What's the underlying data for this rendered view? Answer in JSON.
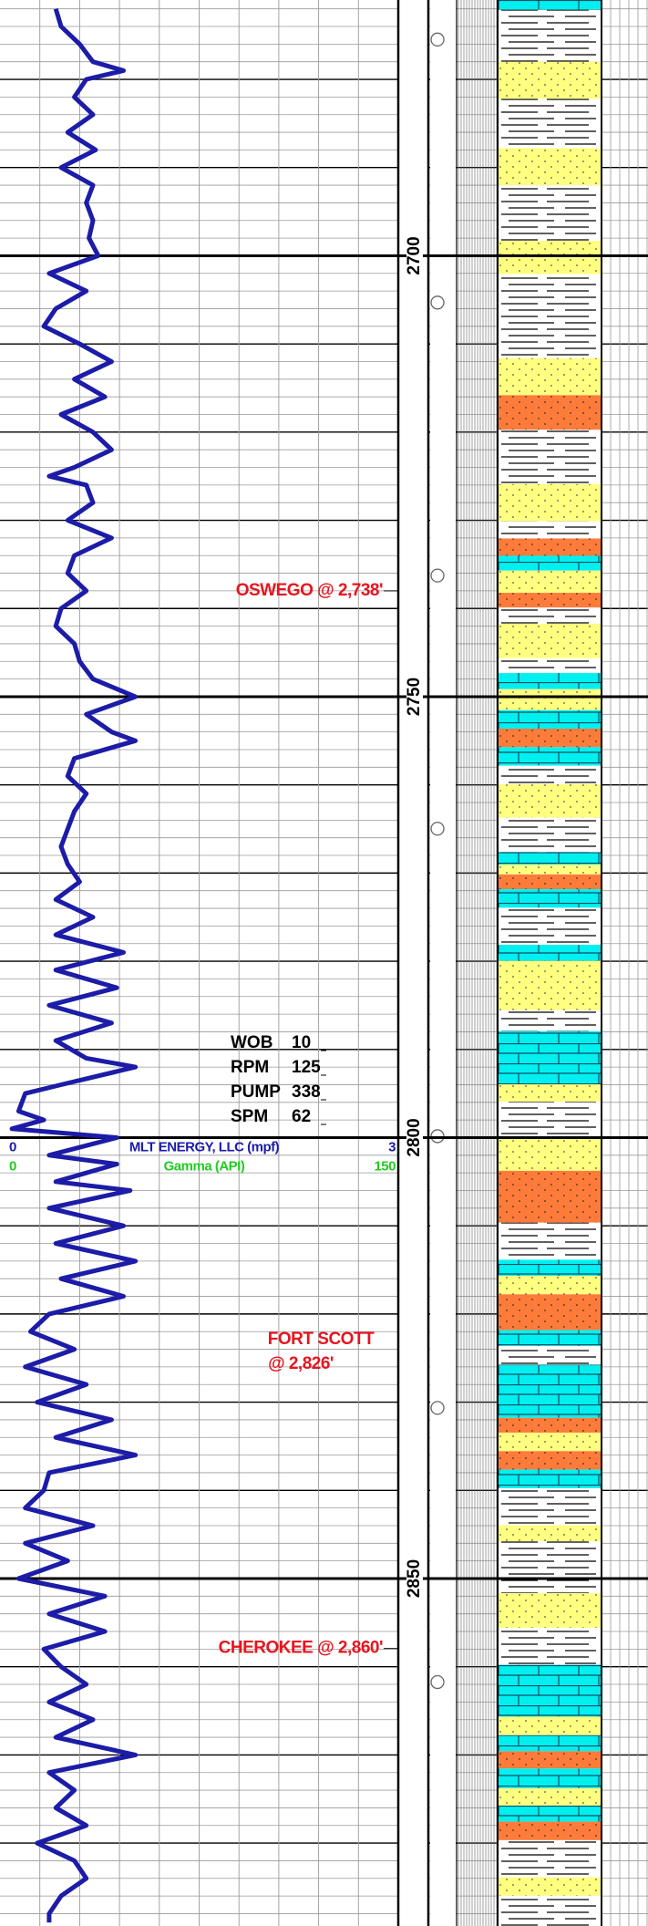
{
  "chart_data": {
    "type": "line",
    "x": [
      2672,
      2674,
      2676,
      2678,
      2679,
      2680,
      2682,
      2684,
      2686,
      2688,
      2690,
      2692,
      2694,
      2696,
      2698,
      2700,
      2702,
      2704,
      2706,
      2708,
      2710,
      2712,
      2714,
      2716,
      2718,
      2720,
      2722,
      2724,
      2725,
      2726,
      2728,
      2730,
      2732,
      2734,
      2736,
      2738,
      2740,
      2742,
      2744,
      2746,
      2748,
      2750,
      2752,
      2754,
      2755,
      2757,
      2759,
      2761,
      2763,
      2765,
      2767,
      2769,
      2771,
      2773,
      2775,
      2777,
      2779,
      2781,
      2783,
      2785,
      2787,
      2789,
      2791,
      2792,
      2794,
      2795,
      2797,
      2798,
      2799,
      2800,
      2802,
      2803,
      2805,
      2806,
      2808,
      2810,
      2812,
      2814,
      2816,
      2818,
      2820,
      2822,
      2824,
      2826,
      2828,
      2830,
      2832,
      2834,
      2836,
      2838,
      2840,
      2842,
      2844,
      2846,
      2848,
      2850,
      2852,
      2854,
      2856,
      2858,
      2860,
      2862,
      2864,
      2866,
      2868,
      2870,
      2872,
      2874,
      2876,
      2878,
      2880,
      2882,
      2884,
      2886,
      2888,
      2889
    ],
    "xlim": [
      2671,
      2889.4
    ],
    "xticks": [
      2700,
      2750,
      2800,
      2850
    ],
    "ylim": [
      0,
      3
    ],
    "series": [
      {
        "name": "MLT ENERGY, LLC (mpf)",
        "color": "#1c1ca8",
        "values": [
          0.42,
          0.46,
          0.6,
          0.7,
          0.93,
          0.65,
          0.56,
          0.7,
          0.51,
          0.72,
          0.46,
          0.7,
          0.65,
          0.7,
          0.67,
          0.74,
          0.37,
          0.65,
          0.42,
          0.33,
          0.6,
          0.84,
          0.56,
          0.79,
          0.46,
          0.7,
          0.84,
          0.56,
          0.37,
          0.65,
          0.7,
          0.51,
          0.84,
          0.56,
          0.51,
          0.65,
          0.46,
          0.42,
          0.56,
          0.6,
          0.7,
          1.02,
          0.65,
          0.84,
          1.02,
          0.56,
          0.51,
          0.65,
          0.56,
          0.51,
          0.46,
          0.51,
          0.6,
          0.42,
          0.7,
          0.42,
          0.93,
          0.42,
          0.88,
          0.37,
          0.84,
          0.42,
          0.65,
          1.02,
          0.46,
          0.19,
          0.14,
          0.33,
          0.09,
          0.88,
          0.37,
          0.88,
          0.42,
          0.98,
          0.37,
          0.93,
          0.42,
          1.02,
          0.46,
          0.93,
          0.37,
          0.23,
          0.56,
          0.19,
          0.65,
          0.28,
          0.84,
          0.42,
          1.02,
          0.37,
          0.33,
          0.19,
          0.7,
          0.19,
          0.51,
          0.14,
          0.79,
          0.37,
          0.79,
          0.33,
          0.46,
          0.65,
          0.37,
          0.7,
          0.42,
          1.02,
          0.37,
          0.56,
          0.42,
          0.65,
          0.28,
          0.56,
          0.65,
          0.46,
          0.37,
          0.37
        ]
      }
    ],
    "gamma": {
      "name": "Gamma (API)",
      "color": "#22cc22",
      "lim": [
        0,
        150
      ]
    },
    "annotations": [
      {
        "text": "OSWEGO @ 2,738'",
        "depth": 2738
      },
      {
        "text": [
          "FORT SCOTT",
          "@ 2,826'"
        ],
        "depth": 2826
      },
      {
        "text": "CHEROKEE @ 2,860'",
        "depth": 2860
      }
    ],
    "drilling_parameters": [
      {
        "name": "WOB",
        "value": 10
      },
      {
        "name": "RPM",
        "value": 125
      },
      {
        "name": "PUMP",
        "value": 338
      },
      {
        "name": "SPM",
        "value": 62
      }
    ]
  }
}
